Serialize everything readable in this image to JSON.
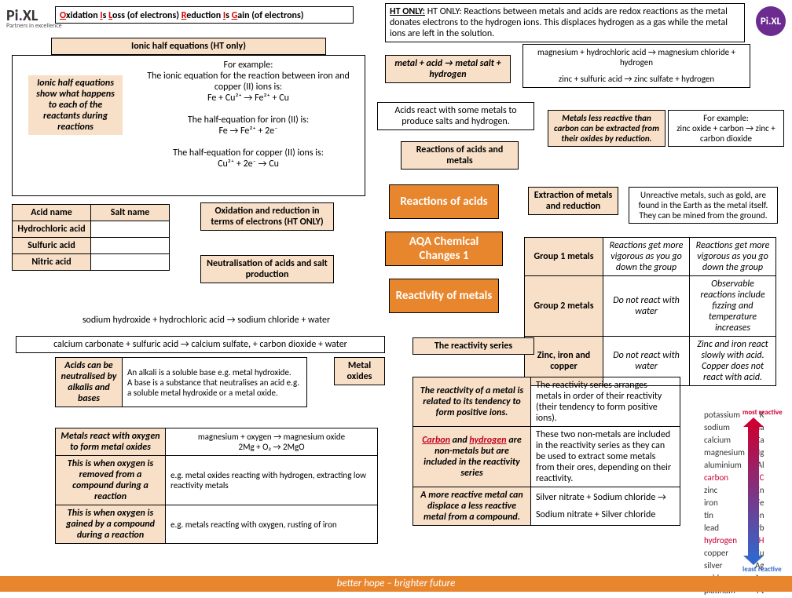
{
  "logo_left": "Pi.XL",
  "logo_tag": "Partners in excellence",
  "oilrig": {
    "o": "O",
    "xidation": "xidation ",
    "i": "I",
    "s": "s ",
    "l": "L",
    "oss": "oss (of electrons) ",
    "r": "R",
    "eduction": "eduction ",
    "i2": "I",
    "s2": "s ",
    "g": "G",
    "ain": "ain (of electrons)"
  },
  "htonly": "HT ONLY: Reactions between metals and acids are redox reactions as the metal donates electrons to the hydrogen ions. This displaces hydrogen as a gas while the metal ions are left in the solution.",
  "ionichdr": "Ionic half equations (HT only)",
  "ionichalf": "Ionic half equations show what happens to each of the reactants during reactions",
  "example": "For example:\nThe ionic equation for the reaction between iron and copper (II) ions is:\nFe + Cu²⁺ → Fe²⁺ + Cu\n\nThe half-equation for iron (II) is:\nFe → Fe²⁺ + 2e⁻\n\nThe half-equation for copper (II) ions is:\nCu²⁺ + 2e⁻ → Cu",
  "metalacid": "metal + acid → metal salt + hydrogen",
  "mg_eq": "magnesium + hydrochloric acid → magnesium chloride + hydrogen",
  "zn_eq": "zinc + sulfuric acid → zinc sulfate + hydrogen",
  "acids_some": "Acids react with some metals to produce salts and hydrogen.",
  "reac_metals_box": "Reactions of acids and metals",
  "metals_less": "Metals less reactive than carbon can be extracted from their oxides by reduction.",
  "zn_ox": "For example:\nzinc oxide + carbon → zinc + carbon dioxide",
  "acidname": "Acid name",
  "saltname": "Salt name",
  "hcl": "Hydrochloric acid",
  "h2so4": "Sulfuric acid",
  "hno3": "Nitric acid",
  "oxred": "Oxidation and reduction in terms of electrons (HT ONLY)",
  "neutr": "Neutralisation of acids and salt production",
  "reac_of_acids": "Reactions of acids",
  "aqa": "AQA Chemical Changes 1",
  "reac_of_metals": "Reactivity of metals",
  "extraction": "Extraction of metals and reduction",
  "unreactive": "Unreactive metals, such as gold, are found in the Earth as the metal itself. They can be mined from the ground.",
  "eq_naoh": "sodium hydroxide + hydrochloric acid → sodium chloride + water",
  "eq_caco3": "calcium carbonate + sulfuric acid → calcium sulfate, + carbon dioxide + water",
  "g1": "Group 1 metals",
  "g1r1": "Reactions get more vigorous as you go down the group",
  "g1r2": "Reactions get more vigorous as you go down the group",
  "g2": "Group 2 metals",
  "g2r1": "Do not react with water",
  "g2r2": "Observable reactions include fizzing and temperature increases",
  "znfe": "Zinc, iron and copper",
  "znfe1": "Do not react with water",
  "znfe2": "Zinc and iron react slowly with acid. Copper does not react with acid.",
  "reactivity_series": "The reactivity series",
  "metal_oxides": "Metal oxides",
  "ac_neut": "Acids can be neutralised by alkalis and bases",
  "alkali": "An alkali is a soluble base e.g. metal hydroxide.\nA base is a substance that neutralises an acid e.g. a soluble metal hydroxide or a metal oxide.",
  "met_oxy": "Metals react with oxygen to form metal oxides",
  "mgo": "magnesium + oxygen → magnesium oxide\n2Mg   +  O₂   →    2MgO",
  "oxy_rem": "This is when oxygen is removed from a compound during a reaction",
  "oxy_rem_ex": "e.g. metal oxides reacting with hydrogen, extracting low reactivity metals",
  "oxy_gain": "This is when oxygen is gained by a compound during a reaction",
  "oxy_gain_ex": "e.g. metals reacting with oxygen, rusting of iron",
  "r_tendency": "The reactivity of a metal is related to its tendency to form positive ions.",
  "r_arrange": "The reactivity series arranges metals in order of their reactivity (their tendency to form positive ions).",
  "chydro": "Carbon and hydrogen are non-metals but are included in the reactivity series",
  "chydro_r": "These two non-metals are included in the reactivity series as they can be used to extract some metals from their ores, depending on their reactivity.",
  "displace": "A more reactive metal can displace a less reactive metal from a compound.",
  "silver1": "Silver nitrate + Sodium chloride →",
  "silver2": "Sodium nitrate + Silver chloride",
  "footer": "better hope – brighter future",
  "series": [
    [
      "potassium",
      "K"
    ],
    [
      "sodium",
      "Na"
    ],
    [
      "calcium",
      "Ca"
    ],
    [
      "magnesium",
      "Mg"
    ],
    [
      "aluminium",
      "Al"
    ],
    [
      "carbon",
      "C"
    ],
    [
      "zinc",
      "Zn"
    ],
    [
      "iron",
      "Fe"
    ],
    [
      "tin",
      "Sn"
    ],
    [
      "lead",
      "Pb"
    ],
    [
      "hydrogen",
      "H"
    ],
    [
      "copper",
      "Cu"
    ],
    [
      "silver",
      "Ag"
    ],
    [
      "gold",
      "Au"
    ],
    [
      "platinum",
      "Pt"
    ]
  ],
  "most": "most reactive",
  "least": "least reactive"
}
